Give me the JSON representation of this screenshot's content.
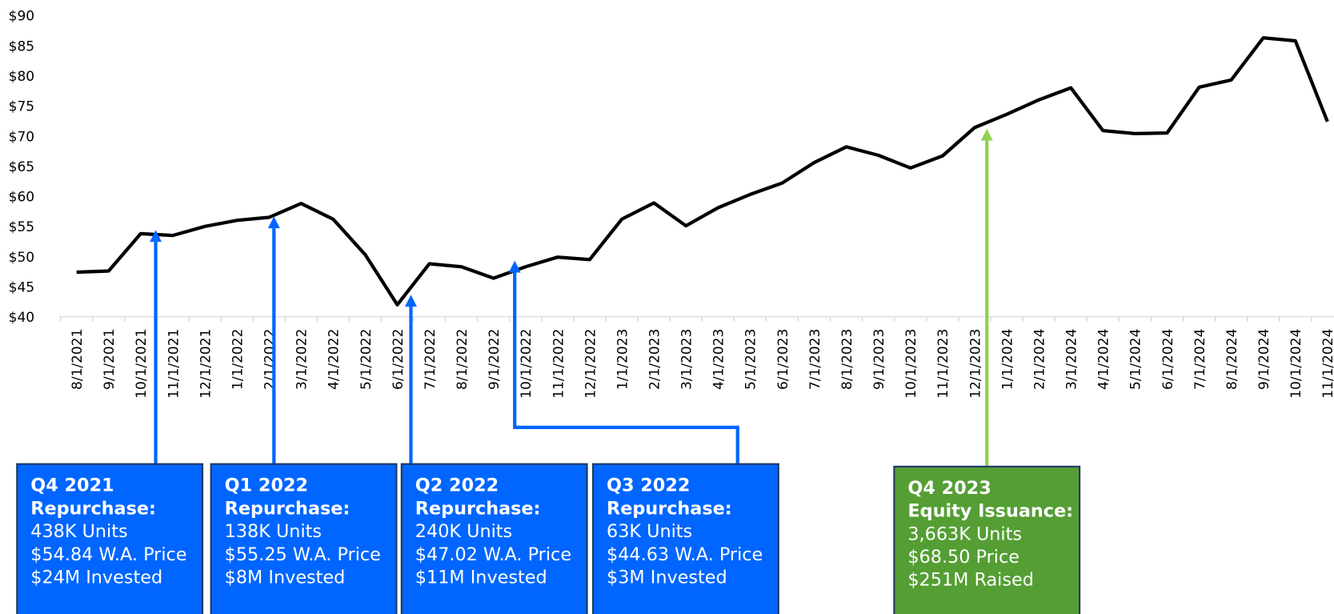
{
  "chart_data": {
    "type": "line",
    "categories": [
      "8/1/2021",
      "9/1/2021",
      "10/1/2021",
      "11/1/2021",
      "12/1/2021",
      "1/1/2022",
      "2/1/2022",
      "3/1/2022",
      "4/1/2022",
      "5/1/2022",
      "6/1/2022",
      "7/1/2022",
      "8/1/2022",
      "9/1/2022",
      "10/1/2022",
      "11/1/2022",
      "12/1/2022",
      "1/1/2023",
      "2/1/2023",
      "3/1/2023",
      "4/1/2023",
      "5/1/2023",
      "6/1/2023",
      "7/1/2023",
      "8/1/2023",
      "9/1/2023",
      "10/1/2023",
      "11/1/2023",
      "12/1/2023",
      "1/1/2024",
      "2/1/2024",
      "3/1/2024",
      "4/1/2024",
      "5/1/2024",
      "6/1/2024",
      "7/1/2024",
      "8/1/2024",
      "9/1/2024",
      "10/1/2024",
      "11/1/2024"
    ],
    "series": [
      {
        "color": "#000000",
        "values": [
          47.4,
          47.6,
          53.8,
          53.5,
          55.0,
          56.0,
          56.5,
          58.8,
          56.2,
          50.3,
          42.0,
          48.8,
          48.3,
          46.4,
          48.3,
          49.9,
          49.5,
          56.2,
          58.9,
          55.1,
          58.1,
          60.3,
          62.2,
          65.6,
          68.2,
          66.8,
          64.7,
          66.7,
          71.4,
          73.6,
          76.0,
          78.0,
          70.9,
          70.4,
          70.5,
          78.1,
          79.3,
          86.3,
          85.8,
          72.4
        ]
      }
    ],
    "ylim": [
      40,
      90
    ],
    "yticks": [
      {
        "value": 40,
        "label": "$40"
      },
      {
        "value": 45,
        "label": "$45"
      },
      {
        "value": 50,
        "label": "$50"
      },
      {
        "value": 55,
        "label": "$55"
      },
      {
        "value": 60,
        "label": "$60"
      },
      {
        "value": 65,
        "label": "$65"
      },
      {
        "value": 70,
        "label": "$70"
      },
      {
        "value": 75,
        "label": "$75"
      },
      {
        "value": 80,
        "label": "$80"
      },
      {
        "value": 85,
        "label": "$85"
      },
      {
        "value": 90,
        "label": "$90"
      }
    ],
    "annotations": [
      {
        "title": "Q4 2021",
        "subtitle": "Repurchase:",
        "lines": [
          "438K Units",
          "$54.84 W.A. Price",
          "$24M Invested"
        ],
        "color": "#0066ff",
        "arrow_color": "#0066ff"
      },
      {
        "title": "Q1 2022",
        "subtitle": "Repurchase:",
        "lines": [
          "138K Units",
          "$55.25 W.A. Price",
          "$8M Invested"
        ],
        "color": "#0066ff",
        "arrow_color": "#0066ff"
      },
      {
        "title": "Q2 2022",
        "subtitle": "Repurchase:",
        "lines": [
          "240K Units",
          "$47.02 W.A. Price",
          "$11M Invested"
        ],
        "color": "#0066ff",
        "arrow_color": "#0066ff"
      },
      {
        "title": "Q3 2022",
        "subtitle": "Repurchase:",
        "lines": [
          "63K Units",
          "$44.63 W.A. Price",
          "$3M Invested"
        ],
        "color": "#0066ff",
        "arrow_color": "#0066ff"
      },
      {
        "title": "Q4 2023",
        "subtitle": "Equity Issuance:",
        "lines": [
          "3,663K Units",
          "$68.50 Price",
          "$251M Raised"
        ],
        "color": "#549e34",
        "arrow_color": "#92d050"
      }
    ]
  }
}
